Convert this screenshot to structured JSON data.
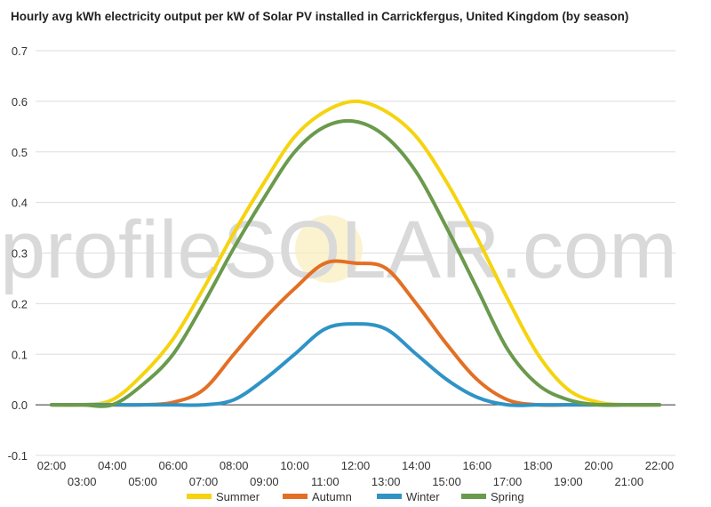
{
  "chart_data": {
    "type": "line",
    "title": "Hourly avg kWh electricity output per kW of Solar PV installed in Carrickfergus, United Kingdom (by season)",
    "xlabel": "",
    "ylabel": "",
    "ylim": [
      -0.1,
      0.7
    ],
    "yticks": [
      "-0.1",
      "0.0",
      "0.1",
      "0.2",
      "0.3",
      "0.4",
      "0.5",
      "0.6",
      "0.7"
    ],
    "x": [
      "02:00",
      "03:00",
      "04:00",
      "05:00",
      "06:00",
      "07:00",
      "08:00",
      "09:00",
      "10:00",
      "11:00",
      "12:00",
      "13:00",
      "14:00",
      "15:00",
      "16:00",
      "17:00",
      "18:00",
      "19:00",
      "20:00",
      "21:00",
      "22:00"
    ],
    "series": [
      {
        "name": "Summer",
        "color": "#f5d40f",
        "values": [
          0,
          0,
          0.01,
          0.06,
          0.13,
          0.23,
          0.34,
          0.44,
          0.53,
          0.58,
          0.6,
          0.58,
          0.53,
          0.44,
          0.33,
          0.21,
          0.1,
          0.03,
          0.005,
          0,
          0
        ]
      },
      {
        "name": "Autumn",
        "color": "#e36f24",
        "values": [
          0,
          0,
          0,
          0,
          0.005,
          0.03,
          0.1,
          0.17,
          0.23,
          0.28,
          0.28,
          0.27,
          0.2,
          0.12,
          0.05,
          0.01,
          0,
          0,
          0,
          0,
          0
        ]
      },
      {
        "name": "Winter",
        "color": "#2f93c6",
        "values": [
          0,
          0,
          0,
          0,
          0,
          0,
          0.01,
          0.05,
          0.1,
          0.15,
          0.16,
          0.15,
          0.1,
          0.05,
          0.015,
          0,
          0,
          0,
          0,
          0,
          0
        ]
      },
      {
        "name": "Spring",
        "color": "#6a9a4c",
        "values": [
          0,
          0,
          0,
          0.04,
          0.1,
          0.2,
          0.31,
          0.41,
          0.5,
          0.55,
          0.56,
          0.53,
          0.46,
          0.35,
          0.23,
          0.11,
          0.04,
          0.01,
          0,
          0,
          0
        ]
      }
    ],
    "legend_position": "bottom",
    "watermark": "profileSOLAR.com"
  }
}
